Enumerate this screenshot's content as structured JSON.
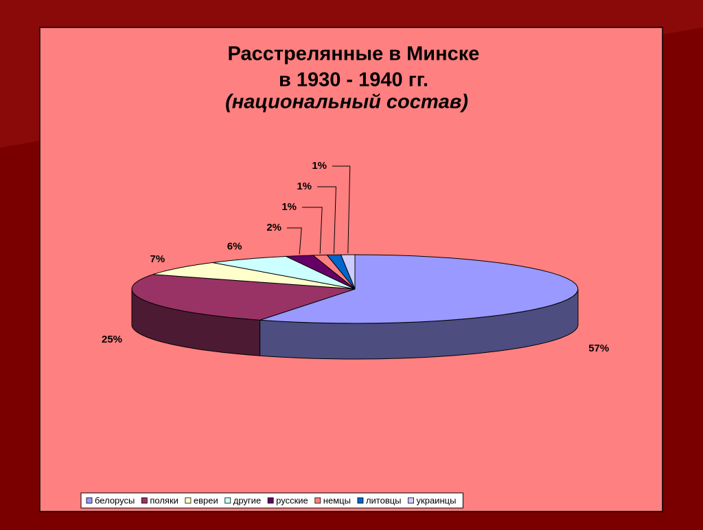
{
  "chart_data": {
    "type": "pie3d",
    "title": [
      "Расстрелянные в Минске",
      "в 1930 - 1940 гг.",
      "(национальный состав)"
    ],
    "categories": [
      "белорусы",
      "поляки",
      "евреи",
      "другие",
      "русские",
      "немцы",
      "литовцы",
      "украинцы"
    ],
    "values": [
      57,
      25,
      7,
      6,
      2,
      1,
      1,
      1
    ],
    "value_labels": [
      "57%",
      "25%",
      "7%",
      "6%",
      "2%",
      "1%",
      "1%",
      "1%"
    ],
    "colors": [
      "#9999ff",
      "#993366",
      "#ffffcc",
      "#ccffff",
      "#660066",
      "#ff8080",
      "#0066cc",
      "#ccccff"
    ],
    "legend": "bottom"
  }
}
